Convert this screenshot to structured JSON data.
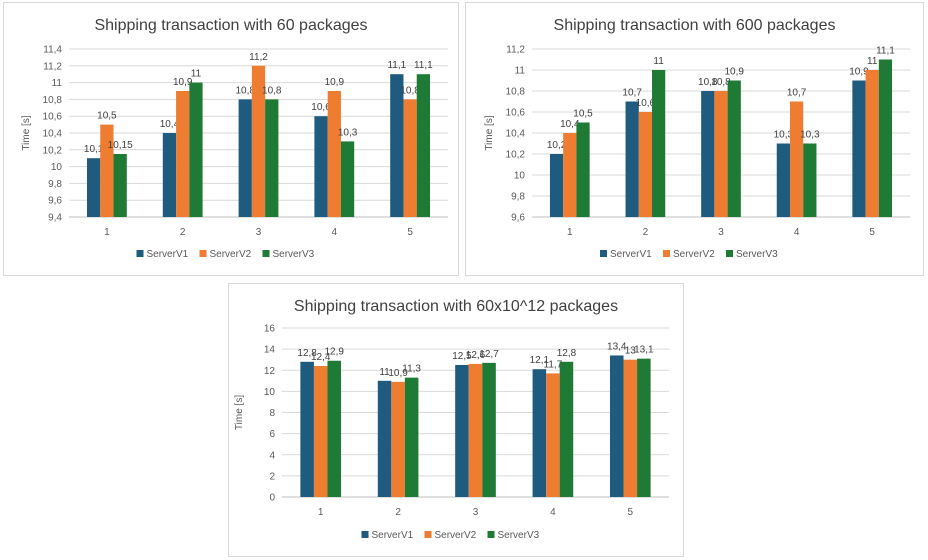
{
  "colors": {
    "ServerV1": "#1f5a7f",
    "ServerV2": "#ee7d31",
    "ServerV3": "#1f7a35"
  },
  "chart_data": [
    {
      "type": "bar",
      "title": "Shipping transaction with 60 packages",
      "ylabel": "Time [s]",
      "categories": [
        "1",
        "2",
        "3",
        "4",
        "5"
      ],
      "ylim": [
        9.4,
        11.4
      ],
      "yticks": [
        "9,4",
        "9,6",
        "9,8",
        "10",
        "10,2",
        "10,4",
        "10,6",
        "10,8",
        "11",
        "11,2",
        "11,4"
      ],
      "grid": true,
      "legend": "bottom",
      "series": [
        {
          "name": "ServerV1",
          "values": [
            10.1,
            10.4,
            10.8,
            10.6,
            11.1
          ],
          "labels": [
            "10,1",
            "10,4",
            "10,8",
            "10,6",
            "11,1"
          ]
        },
        {
          "name": "ServerV2",
          "values": [
            10.5,
            10.9,
            11.2,
            10.9,
            10.8
          ],
          "labels": [
            "10,5",
            "10,9",
            "11,2",
            "10,9",
            "10,8"
          ]
        },
        {
          "name": "ServerV3",
          "values": [
            10.15,
            11,
            10.8,
            10.3,
            11.1
          ],
          "labels": [
            "10,15",
            "11",
            "10,8",
            "10,3",
            "11,1"
          ]
        }
      ]
    },
    {
      "type": "bar",
      "title": "Shipping transaction with 600 packages",
      "ylabel": "Time [s]",
      "categories": [
        "1",
        "2",
        "3",
        "4",
        "5"
      ],
      "ylim": [
        9.6,
        11.2
      ],
      "yticks": [
        "9,6",
        "9,8",
        "10",
        "10,2",
        "10,4",
        "10,6",
        "10,8",
        "11",
        "11,2"
      ],
      "grid": true,
      "legend": "bottom",
      "series": [
        {
          "name": "ServerV1",
          "values": [
            10.2,
            10.7,
            10.8,
            10.3,
            10.9
          ],
          "labels": [
            "10,2",
            "10,7",
            "10,8",
            "10,3",
            "10,9"
          ]
        },
        {
          "name": "ServerV2",
          "values": [
            10.4,
            10.6,
            10.8,
            10.7,
            11
          ],
          "labels": [
            "10,4",
            "10,6",
            "10,8",
            "10,7",
            "11"
          ]
        },
        {
          "name": "ServerV3",
          "values": [
            10.5,
            11,
            10.9,
            10.3,
            11.1
          ],
          "labels": [
            "10,5",
            "11",
            "10,9",
            "10,3",
            "11,1"
          ]
        }
      ]
    },
    {
      "type": "bar",
      "title": "Shipping transaction with 60x10^12 packages",
      "ylabel": "Time [s]",
      "categories": [
        "1",
        "2",
        "3",
        "4",
        "5"
      ],
      "ylim": [
        0,
        16
      ],
      "yticks": [
        "0",
        "2",
        "4",
        "6",
        "8",
        "10",
        "12",
        "14",
        "16"
      ],
      "grid": true,
      "legend": "bottom",
      "series": [
        {
          "name": "ServerV1",
          "values": [
            12.8,
            11,
            12.5,
            12.1,
            13.4
          ],
          "labels": [
            "12,8",
            "11",
            "12,5",
            "12,1",
            "13,4"
          ]
        },
        {
          "name": "ServerV2",
          "values": [
            12.4,
            10.9,
            12.6,
            11.7,
            13
          ],
          "labels": [
            "12,4",
            "10,9",
            "12,6",
            "11,7",
            "13"
          ]
        },
        {
          "name": "ServerV3",
          "values": [
            12.9,
            11.3,
            12.7,
            12.8,
            13.1
          ],
          "labels": [
            "12,9",
            "11,3",
            "12,7",
            "12,8",
            "13,1"
          ]
        }
      ]
    }
  ]
}
